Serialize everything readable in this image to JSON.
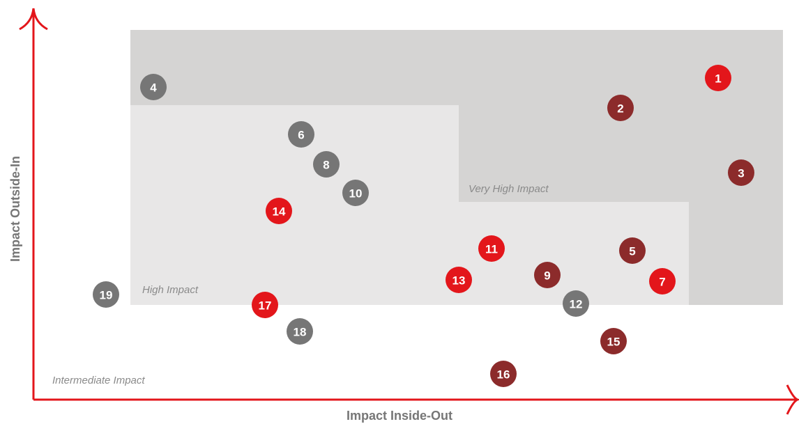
{
  "axes": {
    "y_label": "Impact Outside-In",
    "x_label": "Impact Inside-Out"
  },
  "zones": [
    "Very High Impact",
    "High Impact",
    "Intermediate Impact"
  ],
  "nodes": [
    {
      "label": "1",
      "color": "#e3161b"
    },
    {
      "label": "2",
      "color": "#8c2b2b"
    },
    {
      "label": "3",
      "color": "#8c2b2b"
    },
    {
      "label": "4",
      "color": "#767676"
    },
    {
      "label": "5",
      "color": "#8c2b2b"
    },
    {
      "label": "6",
      "color": "#767676"
    },
    {
      "label": "7",
      "color": "#e3161b"
    },
    {
      "label": "8",
      "color": "#767676"
    },
    {
      "label": "9",
      "color": "#8c2b2b"
    },
    {
      "label": "10",
      "color": "#767676"
    },
    {
      "label": "11",
      "color": "#e3161b"
    },
    {
      "label": "12",
      "color": "#767676"
    },
    {
      "label": "13",
      "color": "#e3161b"
    },
    {
      "label": "14",
      "color": "#e3161b"
    },
    {
      "label": "15",
      "color": "#8c2b2b"
    },
    {
      "label": "16",
      "color": "#8c2b2b"
    },
    {
      "label": "17",
      "color": "#e3161b"
    },
    {
      "label": "18",
      "color": "#767676"
    },
    {
      "label": "19",
      "color": "#767676"
    }
  ]
}
